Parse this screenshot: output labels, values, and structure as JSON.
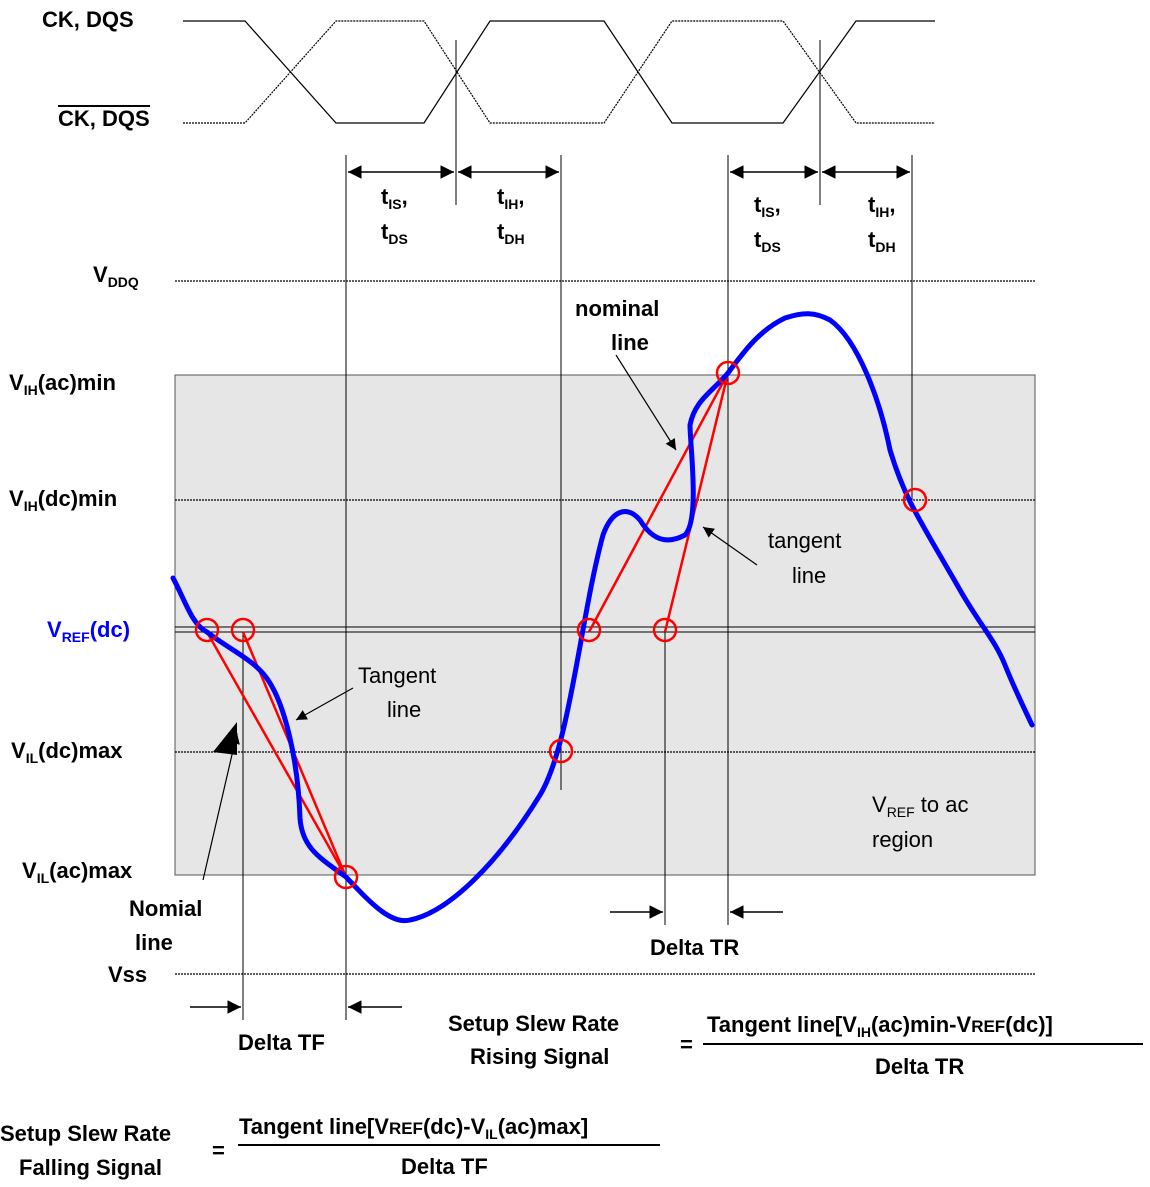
{
  "clock": {
    "ck_label": "CK, DQS",
    "ck_bar_label": "CK, DQS"
  },
  "timing": {
    "t_is": "t",
    "t_is_sub": "IS",
    "t_is_comma": ",",
    "t_ds": "t",
    "t_ds_sub": "DS",
    "t_ih": "t",
    "t_ih_sub": "IH",
    "t_ih_comma": ",",
    "t_dh": "t",
    "t_dh_sub": "DH"
  },
  "levels": {
    "vddq": "V",
    "vddq_sub": "DDQ",
    "vih_ac": "V",
    "vih_ac_sub": "IH",
    "vih_ac_tail": "(ac)min",
    "vih_dc": "V",
    "vih_dc_sub": "IH",
    "vih_dc_tail": "(dc)min",
    "vref": "V",
    "vref_sub": "REF",
    "vref_tail": "(dc)",
    "vil_dc": "V",
    "vil_dc_sub": "IL",
    "vil_dc_tail": "(dc)max",
    "vil_ac": "V",
    "vil_ac_sub": "IL",
    "vil_ac_tail": "(ac)max",
    "vss": "Vss"
  },
  "annotations": {
    "nominal_line_1": "nominal",
    "nominal_line_2": "line",
    "tangent_lower_1": "tangent",
    "tangent_lower_2": "line",
    "tangent_upper_1": "Tangent",
    "tangent_upper_2": "line",
    "nomial_1": "Nomial",
    "nomial_2": "line",
    "region_v": "V",
    "region_sub": "REF",
    "region_tail": " to ac",
    "region_line2": "region",
    "delta_tr": "Delta TR",
    "delta_tf": "Delta TF"
  },
  "formulas": {
    "rising_label_1": "Setup Slew Rate",
    "rising_label_2": "Rising Signal",
    "rising_eq": "=",
    "rising_num_a": "Tangent line[V",
    "rising_num_sub": "IH",
    "rising_num_b": "(ac)min-V",
    "rising_num_sc": "REF",
    "rising_num_c": "(dc)]",
    "rising_den": "Delta TR",
    "falling_label_1": "Setup Slew Rate",
    "falling_label_2": "Falling Signal",
    "falling_eq": "=",
    "falling_num_a": "Tangent line[V",
    "falling_num_sc": "REF",
    "falling_num_b": "(dc)-V",
    "falling_num_sub": "IL",
    "falling_num_c": "(ac)max]",
    "falling_den": "Delta TF"
  },
  "colors": {
    "signal": "#0000ff",
    "tangent": "#ff0000",
    "region_fill": "#e6e6e6"
  }
}
